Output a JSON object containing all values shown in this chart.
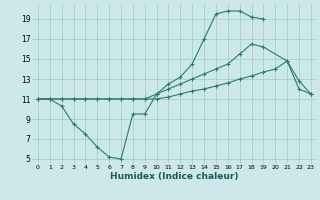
{
  "xlabel": "Humidex (Indice chaleur)",
  "bg_color": "#cce8e8",
  "line_color": "#2e7b6e",
  "grid_color": "#99cccc",
  "xlim": [
    -0.5,
    23.5
  ],
  "ylim": [
    4.5,
    20.5
  ],
  "xticks": [
    0,
    1,
    2,
    3,
    4,
    5,
    6,
    7,
    8,
    9,
    10,
    11,
    12,
    13,
    14,
    15,
    16,
    17,
    18,
    19,
    20,
    21,
    22,
    23
  ],
  "yticks": [
    5,
    7,
    9,
    11,
    13,
    15,
    17,
    19
  ],
  "series": [
    {
      "x": [
        0,
        1,
        2,
        3,
        4,
        5,
        6,
        7,
        8,
        9,
        10,
        11,
        12,
        13,
        14,
        15,
        16,
        17,
        18,
        19,
        20,
        21,
        22,
        23
      ],
      "y": [
        11,
        11,
        10.3,
        8.5,
        7.5,
        6.2,
        5.2,
        5.0,
        9.5,
        9.5,
        11.5,
        12.5,
        13.2,
        14.5,
        17.0,
        19.5,
        19.8,
        19.8,
        19.2,
        19.0,
        null,
        null,
        null,
        null
      ]
    },
    {
      "x": [
        0,
        1,
        2,
        3,
        4,
        5,
        6,
        7,
        8,
        9,
        10,
        11,
        12,
        13,
        14,
        15,
        16,
        17,
        18,
        19,
        20,
        21,
        22,
        23
      ],
      "y": [
        11,
        11,
        11,
        11,
        11,
        11,
        11,
        11,
        11,
        11,
        11.5,
        12.0,
        12.5,
        13.0,
        13.5,
        14.0,
        14.5,
        15.5,
        16.5,
        16.2,
        null,
        14.8,
        12.8,
        11.5
      ]
    },
    {
      "x": [
        0,
        1,
        2,
        3,
        4,
        5,
        6,
        7,
        8,
        9,
        10,
        11,
        12,
        13,
        14,
        15,
        16,
        17,
        18,
        19,
        20,
        21,
        22,
        23
      ],
      "y": [
        11,
        11,
        11,
        11,
        11,
        11,
        11,
        11,
        11,
        11,
        11.0,
        11.2,
        11.5,
        11.8,
        12.0,
        12.3,
        12.6,
        13.0,
        13.3,
        13.7,
        14.0,
        14.8,
        12.0,
        11.5
      ]
    }
  ]
}
